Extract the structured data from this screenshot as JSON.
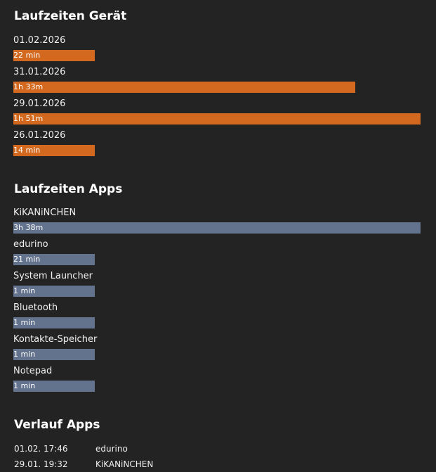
{
  "device_usage": {
    "title": "Laufzeiten Gerät",
    "accent_color": "#d2691e",
    "entries": [
      {
        "date": "01.02.2026",
        "duration": "22 min",
        "fraction": 0.2
      },
      {
        "date": "31.01.2026",
        "duration": "1h 33m",
        "fraction": 0.84
      },
      {
        "date": "29.01.2026",
        "duration": "1h 51m",
        "fraction": 1.0
      },
      {
        "date": "26.01.2026",
        "duration": "14 min",
        "fraction": 0.2
      }
    ]
  },
  "app_usage": {
    "title": "Laufzeiten Apps",
    "accent_color": "#63738d",
    "entries": [
      {
        "app": "KiKANiNCHEN",
        "duration": "3h 38m",
        "fraction": 1.0
      },
      {
        "app": "edurino",
        "duration": "21 min",
        "fraction": 0.2
      },
      {
        "app": "System Launcher",
        "duration": "1 min",
        "fraction": 0.2
      },
      {
        "app": "Bluetooth",
        "duration": "1 min",
        "fraction": 0.2
      },
      {
        "app": "Kontakte-Speicher",
        "duration": "1 min",
        "fraction": 0.2
      },
      {
        "app": "Notepad",
        "duration": "1 min",
        "fraction": 0.2
      }
    ]
  },
  "app_history": {
    "title": "Verlauf Apps",
    "rows": [
      {
        "time": "01.02. 17:46",
        "app": "edurino"
      },
      {
        "time": "29.01. 19:32",
        "app": "KiKANiNCHEN"
      }
    ]
  }
}
